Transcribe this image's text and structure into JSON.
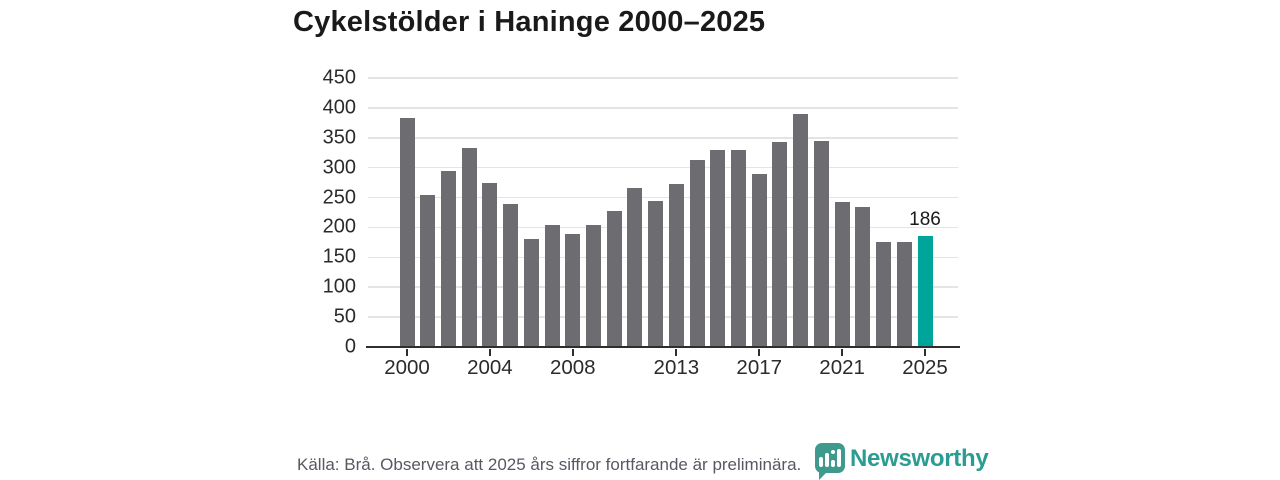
{
  "title": "Cykelstölder i Haninge 2000–2025",
  "footer": {
    "source": "Källa: Brå. Observera att 2025 års siffror fortfarande är preliminära."
  },
  "logo": {
    "text": "Newsworthy",
    "mark_color": "#3f9a8d",
    "text_color": "#2a9c92"
  },
  "colors": {
    "bar": "#6d6d71",
    "highlight": "#00a59a",
    "grid": "#e4e4e4",
    "axis": "#2e2e2e",
    "title_text": "#1a1a1a",
    "axis_text": "#2b2b2b",
    "footer_text": "#585862"
  },
  "chart_data": {
    "type": "bar",
    "title": "Cykelstölder i Haninge 2000–2025",
    "xlabel": "",
    "ylabel": "",
    "x": [
      2000,
      2001,
      2002,
      2003,
      2004,
      2005,
      2006,
      2007,
      2008,
      2009,
      2010,
      2011,
      2012,
      2013,
      2014,
      2015,
      2016,
      2017,
      2018,
      2019,
      2020,
      2021,
      2022,
      2023,
      2024,
      2025
    ],
    "values": [
      383,
      255,
      295,
      333,
      274,
      240,
      180,
      204,
      189,
      204,
      227,
      266,
      244,
      273,
      313,
      330,
      330,
      290,
      343,
      390,
      345,
      243,
      234,
      175,
      176,
      186
    ],
    "ylim": [
      0,
      450
    ],
    "ytick_interval": 50,
    "xtick_labels": [
      "2000",
      "2004",
      "2008",
      "2013",
      "2017",
      "2021",
      "2025"
    ],
    "highlight": {
      "year": 2025,
      "value": 186,
      "label": "186"
    },
    "grid": true,
    "legend": "none"
  }
}
